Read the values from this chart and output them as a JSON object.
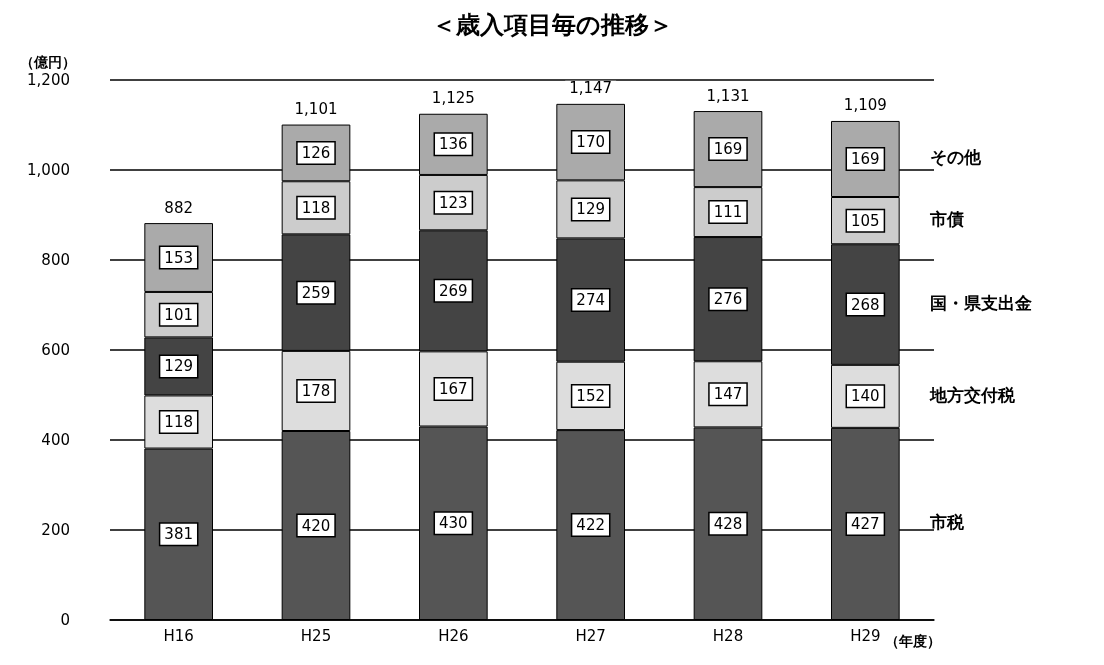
{
  "chart_data": {
    "type": "bar",
    "title": "＜歳入項目毎の推移＞",
    "ylabel": "（億円）",
    "xlabel": "（年度）",
    "categories": [
      "H16",
      "H25",
      "H26",
      "H27",
      "H28",
      "H29"
    ],
    "stacked": true,
    "series": [
      {
        "name": "市税",
        "color": "#555555",
        "values": [
          381,
          420,
          430,
          422,
          428,
          427
        ]
      },
      {
        "name": "地方交付税",
        "color": "#dddddd",
        "values": [
          118,
          178,
          167,
          152,
          147,
          140
        ]
      },
      {
        "name": "国・県支出金",
        "color": "#444444",
        "values": [
          129,
          259,
          269,
          274,
          276,
          268
        ]
      },
      {
        "name": "市債",
        "color": "#cccccc",
        "values": [
          101,
          118,
          123,
          129,
          111,
          105
        ]
      },
      {
        "name": "その他",
        "color": "#aaaaaa",
        "values": [
          153,
          126,
          136,
          170,
          169,
          169
        ]
      }
    ],
    "totals": [
      "882",
      "1,101",
      "1,125",
      "1,147",
      "1,131",
      "1,109"
    ],
    "data_labels": true,
    "ylim": [
      0,
      1200
    ],
    "yticks": [
      0,
      200,
      400,
      600,
      800,
      {
        "value": 1000,
        "label": "1,000"
      },
      {
        "value": 1200,
        "label": "1,200"
      }
    ],
    "grid": "y"
  }
}
